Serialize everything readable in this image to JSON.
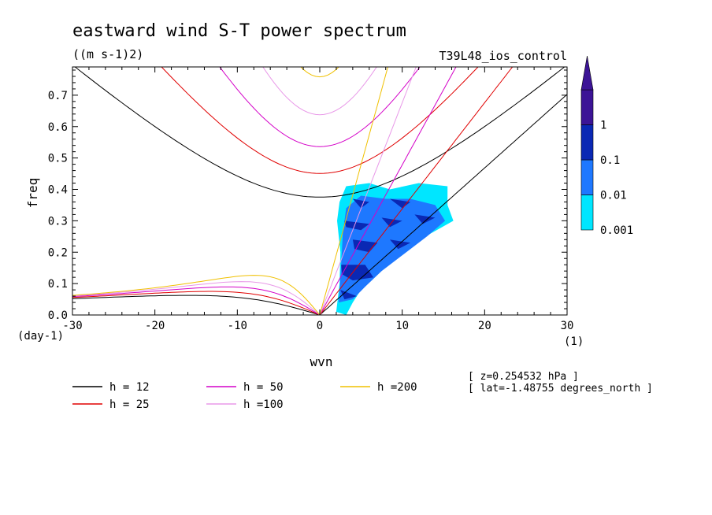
{
  "chart_data": {
    "type": "contour",
    "title": "eastward wind S-T power spectrum",
    "units": "((m s-1)2)",
    "run_label": "T39L48_ios_control",
    "xlabel": "wvn",
    "ylabel": "freq",
    "x_unit": "(1)",
    "y_unit": "(day-1)",
    "xlim": [
      -30,
      30
    ],
    "ylim": [
      0,
      0.79
    ],
    "xticks": [
      -30,
      -20,
      -10,
      0,
      10,
      20,
      30
    ],
    "yticks": [
      0.0,
      0.1,
      0.2,
      0.3,
      0.4,
      0.5,
      0.6,
      0.7
    ],
    "xtick_labels": [
      "-30",
      "-20",
      "-10",
      "0",
      "10",
      "20",
      "30"
    ],
    "ytick_labels": [
      "0.0",
      "0.1",
      "0.2",
      "0.3",
      "0.4",
      "0.5",
      "0.6",
      "0.7"
    ],
    "colorbar": {
      "levels": [
        {
          "label": "0.001",
          "color": "#00e6ff"
        },
        {
          "label": "0.01",
          "color": "#1e78ff"
        },
        {
          "label": "0.1",
          "color": "#0a28b4"
        },
        {
          "label": "1",
          "color": "#3c1496"
        }
      ],
      "extend_color": "#3c1496"
    },
    "filled_regions": {
      "level_0001": [
        [
          2,
          0.01
        ],
        [
          2.4,
          0.1
        ],
        [
          2.5,
          0.2
        ],
        [
          2.3,
          0.25
        ],
        [
          2.1,
          0.3
        ],
        [
          2.4,
          0.36
        ],
        [
          3.2,
          0.41
        ],
        [
          6,
          0.42
        ],
        [
          8.5,
          0.4
        ],
        [
          12,
          0.42
        ],
        [
          15.5,
          0.41
        ],
        [
          15.5,
          0.35
        ],
        [
          16.2,
          0.3
        ],
        [
          13.5,
          0.26
        ],
        [
          10,
          0.2
        ],
        [
          7,
          0.14
        ],
        [
          5,
          0.08
        ],
        [
          4,
          0.04
        ],
        [
          3.2,
          0.0
        ]
      ],
      "level_001": [
        [
          2.3,
          0.04
        ],
        [
          2.6,
          0.16
        ],
        [
          2.8,
          0.26
        ],
        [
          3.2,
          0.34
        ],
        [
          5,
          0.38
        ],
        [
          8,
          0.37
        ],
        [
          11,
          0.37
        ],
        [
          14,
          0.35
        ],
        [
          15.2,
          0.3
        ],
        [
          13,
          0.25
        ],
        [
          10,
          0.19
        ],
        [
          7.5,
          0.14
        ],
        [
          5.5,
          0.09
        ],
        [
          4,
          0.05
        ]
      ],
      "level_01": [
        [
          [
            4,
            0.37
          ],
          [
            6,
            0.36
          ],
          [
            5,
            0.34
          ]
        ],
        [
          [
            8.5,
            0.37
          ],
          [
            11,
            0.36
          ],
          [
            10,
            0.34
          ]
        ],
        [
          [
            3,
            0.3
          ],
          [
            6,
            0.29
          ],
          [
            5,
            0.27
          ],
          [
            3.2,
            0.28
          ]
        ],
        [
          [
            7.5,
            0.31
          ],
          [
            10,
            0.3
          ],
          [
            8.5,
            0.28
          ]
        ],
        [
          [
            11.5,
            0.32
          ],
          [
            14,
            0.31
          ],
          [
            12.5,
            0.29
          ]
        ],
        [
          [
            4,
            0.24
          ],
          [
            7,
            0.23
          ],
          [
            6,
            0.2
          ],
          [
            4.2,
            0.21
          ]
        ],
        [
          [
            8.5,
            0.24
          ],
          [
            11,
            0.23
          ],
          [
            9.5,
            0.21
          ]
        ],
        [
          [
            2.6,
            0.16
          ],
          [
            5.5,
            0.16
          ],
          [
            6.5,
            0.12
          ],
          [
            4,
            0.11
          ],
          [
            2.7,
            0.13
          ]
        ],
        [
          [
            2.5,
            0.08
          ],
          [
            4.5,
            0.06
          ],
          [
            3,
            0.05
          ]
        ]
      ]
    },
    "dispersion_curves": {
      "labels": [
        "h = 12",
        "h = 25",
        "h = 50",
        "h =100",
        "h =200"
      ],
      "h": [
        12,
        25,
        50,
        100,
        200
      ],
      "colors": [
        "#000000",
        "#e00000",
        "#d400c8",
        "#e898e8",
        "#f0c000"
      ]
    },
    "info_lines": [
      "[ z=0.254532 hPa ]",
      "[ lat=-1.48755 degrees_north ]"
    ]
  }
}
